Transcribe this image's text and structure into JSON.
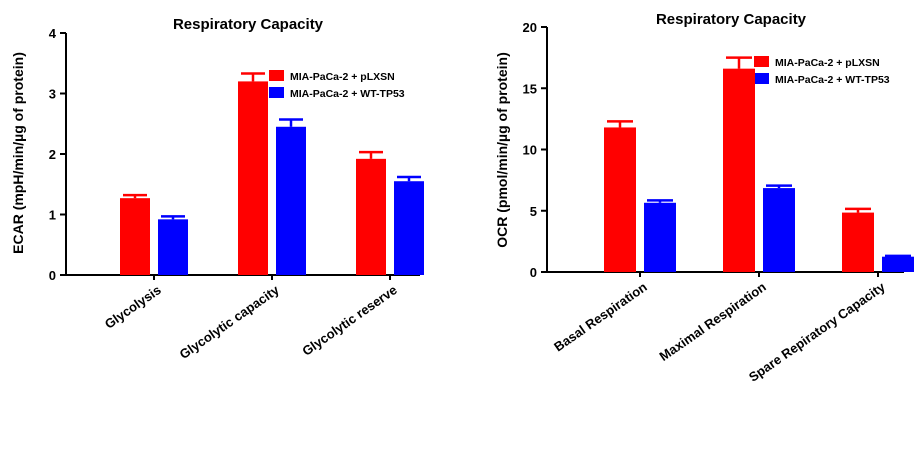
{
  "chart_data": [
    {
      "type": "bar",
      "title": "Respiratory Capacity",
      "xlabel": "",
      "ylabel": "ECAR (mpH/min/µg of protein)",
      "ylim": [
        0,
        4
      ],
      "yticks": [
        0,
        1,
        2,
        3,
        4
      ],
      "categories": [
        "Glycolysis",
        "Glycolytic capacity",
        "Glycolytic reserve"
      ],
      "series": [
        {
          "name": "MIA-PaCa-2 + pLXSN",
          "color": "#ff0000",
          "values": [
            1.27,
            3.2,
            1.92
          ],
          "errors": [
            0.05,
            0.13,
            0.11
          ]
        },
        {
          "name": "MIA-PaCa-2 + WT-TP53",
          "color": "#0000ff",
          "values": [
            0.92,
            2.45,
            1.55
          ],
          "errors": [
            0.05,
            0.12,
            0.07
          ]
        }
      ],
      "legend": "top-right",
      "grid": false
    },
    {
      "type": "bar",
      "title": "Respiratory Capacity",
      "xlabel": "",
      "ylabel": "OCR (pmol/min/µg of protein)",
      "ylim": [
        0,
        20
      ],
      "yticks": [
        0,
        5,
        10,
        15,
        20
      ],
      "categories": [
        "Basal Respiration",
        "Maximal Respiration",
        "Spare Repiratory Capacity"
      ],
      "series": [
        {
          "name": "MIA-PaCa-2 + pLXSN",
          "color": "#ff0000",
          "values": [
            11.8,
            16.6,
            4.85
          ],
          "errors": [
            0.5,
            0.9,
            0.3
          ]
        },
        {
          "name": "MIA-PaCa-2 + WT-TP53",
          "color": "#0000ff",
          "values": [
            5.65,
            6.85,
            1.25
          ],
          "errors": [
            0.2,
            0.2,
            0.07
          ]
        }
      ],
      "legend": "top-right",
      "grid": false
    }
  ]
}
